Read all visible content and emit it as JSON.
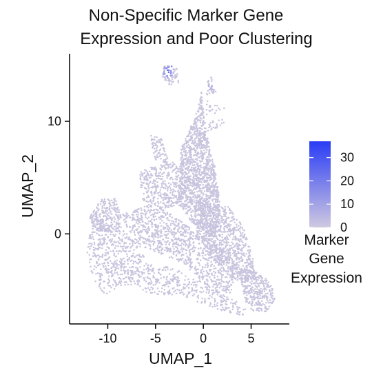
{
  "chart_data": {
    "type": "scatter",
    "title_lines": [
      "Non-Specific Marker Gene",
      "Expression and Poor Clustering"
    ],
    "xlabel": "UMAP_1",
    "ylabel": "UMAP_2",
    "xlim": [
      -14,
      9
    ],
    "ylim": [
      -8,
      16
    ],
    "x_ticks": [
      -10,
      -5,
      0,
      5
    ],
    "x_tick_labels": [
      "-10",
      "-5",
      "0",
      "5"
    ],
    "y_ticks": [
      0,
      10
    ],
    "y_tick_labels": [
      "0",
      "10"
    ],
    "grid": false,
    "legend": {
      "title_lines": [
        "Marker",
        "Gene",
        "Expression"
      ],
      "placement": "right",
      "min": 0,
      "max": 37,
      "ticks": [
        0,
        10,
        20,
        30
      ],
      "tick_labels": [
        "0",
        "10",
        "20",
        "30"
      ],
      "low_color": "#cfc9e0",
      "high_color": "#2a3cf5"
    },
    "point_color": "#c9c4de",
    "regions": [
      {
        "polygon": [
          [
            -2.6,
            2.6
          ],
          [
            -2.4,
            7.4
          ],
          [
            -0.8,
            10.5
          ],
          [
            -0.2,
            12.6
          ],
          [
            0.3,
            9.0
          ],
          [
            1.2,
            6.0
          ],
          [
            1.8,
            2.5
          ],
          [
            1.2,
            -0.5
          ],
          [
            -1.0,
            0.8
          ]
        ],
        "weight": 0.26
      },
      {
        "polygon": [
          [
            -6.8,
            5.6
          ],
          [
            -6.4,
            3.0
          ],
          [
            -4.0,
            2.2
          ],
          [
            -2.2,
            2.8
          ],
          [
            -1.6,
            5.0
          ],
          [
            -3.2,
            6.4
          ]
        ],
        "weight": 0.07
      },
      {
        "polygon": [
          [
            -5.6,
            8.8
          ],
          [
            -5.1,
            6.6
          ],
          [
            -3.6,
            6.2
          ],
          [
            -4.2,
            8.4
          ]
        ],
        "weight": 0.015
      },
      {
        "polygon": [
          [
            -12.0,
            1.5
          ],
          [
            -10.4,
            3.4
          ],
          [
            -9.2,
            3.2
          ],
          [
            -8.6,
            1.4
          ],
          [
            -8.8,
            0.2
          ],
          [
            -11.5,
            0.2
          ]
        ],
        "weight": 0.05
      },
      {
        "polygon": [
          [
            -11.8,
            0.4
          ],
          [
            -8.6,
            0.6
          ],
          [
            -7.3,
            -0.6
          ],
          [
            -6.2,
            -2.0
          ],
          [
            -7.6,
            -4.6
          ],
          [
            -10.4,
            -5.4
          ],
          [
            -11.6,
            -3.8
          ],
          [
            -12.2,
            -1.5
          ]
        ],
        "weight": 0.08
      },
      {
        "polygon": [
          [
            -8.6,
            1.8
          ],
          [
            -5.0,
            2.8
          ],
          [
            -1.2,
            0.4
          ],
          [
            1.4,
            -0.8
          ],
          [
            3.4,
            -2.6
          ],
          [
            3.0,
            -5.4
          ],
          [
            0.6,
            -4.8
          ],
          [
            -2.2,
            -2.6
          ],
          [
            -5.6,
            -1.4
          ],
          [
            -7.2,
            -1.0
          ]
        ],
        "weight": 0.17
      },
      {
        "polygon": [
          [
            -8.4,
            -3.8
          ],
          [
            -6.0,
            -2.6
          ],
          [
            -3.2,
            -3.0
          ],
          [
            -0.8,
            -4.0
          ],
          [
            2.0,
            -5.2
          ],
          [
            4.6,
            -6.6
          ],
          [
            4.2,
            -7.3
          ],
          [
            1.0,
            -6.6
          ],
          [
            -2.4,
            -5.4
          ],
          [
            -5.6,
            -5.4
          ]
        ],
        "weight": 0.07
      },
      {
        "polygon": [
          [
            -0.4,
            2.8
          ],
          [
            2.6,
            2.4
          ],
          [
            4.2,
            0.6
          ],
          [
            5.2,
            -2.2
          ],
          [
            5.4,
            -4.0
          ],
          [
            3.6,
            -4.4
          ],
          [
            1.2,
            -2.4
          ],
          [
            -0.8,
            -0.2
          ]
        ],
        "weight": 0.15
      },
      {
        "polygon": [
          [
            3.6,
            -3.0
          ],
          [
            5.8,
            -3.4
          ],
          [
            7.1,
            -4.4
          ],
          [
            7.5,
            -5.8
          ],
          [
            6.6,
            -6.9
          ],
          [
            5.2,
            -6.9
          ],
          [
            4.4,
            -6.0
          ]
        ],
        "weight": 0.06
      },
      {
        "polygon": [
          [
            0.2,
            12.2
          ],
          [
            1.4,
            12.6
          ],
          [
            0.9,
            14.0
          ],
          [
            0.4,
            13.5
          ]
        ],
        "weight": 0.006
      },
      {
        "polygon": [
          [
            -0.2,
            10.4
          ],
          [
            2.0,
            10.8
          ],
          [
            2.2,
            11.2
          ],
          [
            0.4,
            11.8
          ]
        ],
        "weight": 0.004
      },
      {
        "polygon": [
          [
            0.3,
            9.0
          ],
          [
            2.0,
            9.6
          ],
          [
            2.6,
            10.2
          ],
          [
            0.6,
            10.0
          ]
        ],
        "weight": 0.004
      },
      {
        "polygon": [
          [
            -4.1,
            15.0
          ],
          [
            -2.8,
            14.8
          ],
          [
            -2.6,
            13.4
          ],
          [
            -3.6,
            13.2
          ],
          [
            -4.3,
            14.0
          ]
        ],
        "weight": 0.012
      }
    ],
    "hot_spots": [
      {
        "center": [
          -3.7,
          14.4
        ],
        "radius": 0.7,
        "value": 30
      },
      {
        "center": [
          -3.3,
          14.8
        ],
        "radius": 0.35,
        "value": 22
      },
      {
        "center": [
          0.8,
          13.1
        ],
        "radius": 0.5,
        "value": 9
      }
    ]
  }
}
